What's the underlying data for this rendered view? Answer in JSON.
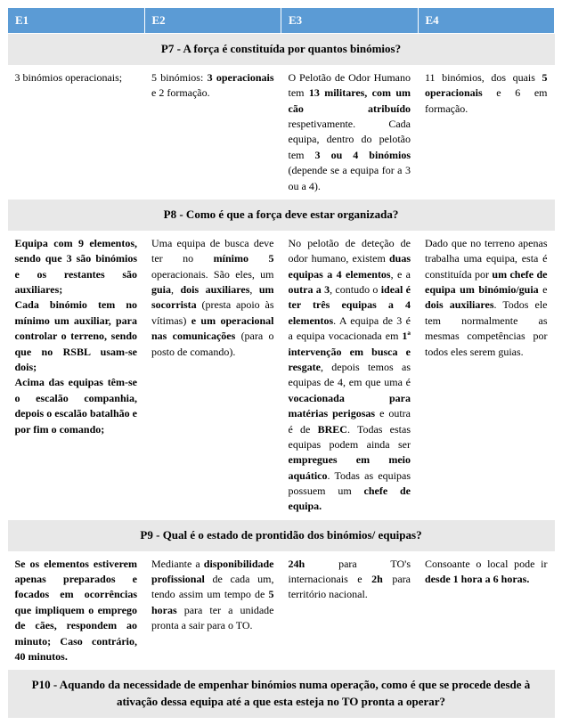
{
  "headers": {
    "e1": "E1",
    "e2": "E2",
    "e3": "E3",
    "e4": "E4"
  },
  "sections": {
    "p7": {
      "title": "P7 - A força é constituída por quantos binómios?",
      "e1": "3 binómios operacionais;",
      "e2_pre": "5 binómios: ",
      "e2_b1": "3 operacionais",
      "e2_mid": " e 2 formação.",
      "e3_pre": "O Pelotão de Odor Humano tem ",
      "e3_b1": "13 militares, com um cão atribuído",
      "e3_mid": " respetivamente. Cada equipa, dentro do pelotão tem ",
      "e3_b2": "3 ou 4 binómios",
      "e3_post": " (depende se a equipa for a 3 ou a 4).",
      "e4_pre": "11 binómios, dos quais ",
      "e4_b1": "5 operacionais",
      "e4_post": " e 6 em formação."
    },
    "p8": {
      "title": "P8 - Como é que a força deve estar organizada?",
      "e1_b1": "Equipa com 9 elementos, sendo que 3 são binómios e os restantes são auxiliares;",
      "e1_b2": "Cada binómio tem no mínimo um auxiliar, para controlar o terreno, sendo que no RSBL usam-se dois;",
      "e1_b3": "Acima das equipas têm-se o escalão companhia, depois o escalão batalhão e por fim o comando;",
      "e2_pre": "Uma equipa de busca deve ter no ",
      "e2_b1": "mínimo 5",
      "e2_mid1": " operacionais. São eles, um ",
      "e2_b2": "guia",
      "e2_mid2": ", ",
      "e2_b3": "dois auxiliares",
      "e2_mid3": ", ",
      "e2_b4": "um socorrista",
      "e2_mid4": " (presta apoio às vítimas) ",
      "e2_b5": "e um operacional nas comunicações",
      "e2_post": " (para o posto de comando).",
      "e3_pre": "No pelotão de deteção de odor humano, existem ",
      "e3_b1": "duas equipas a 4 elementos",
      "e3_mid1": ", e a ",
      "e3_b2": "outra a 3",
      "e3_mid2": ", contudo o ",
      "e3_b3": "ideal é ter três equipas a 4 elementos",
      "e3_mid3": ". A equipa de 3 é a equipa vocacionada em ",
      "e3_b4": "1ª intervenção em busca e resgate",
      "e3_mid4": ", depois temos as equipas de 4, em que uma é ",
      "e3_b5": "vocacionada para matérias perigosas",
      "e3_mid5": " e outra é de ",
      "e3_b6": "BREC",
      "e3_mid6": ". Todas estas equipas podem ainda ser ",
      "e3_b7": "empregues em meio aquático",
      "e3_mid7": ". Todas as equipas possuem um ",
      "e3_b8": "chefe de equipa.",
      "e4_pre": "Dado que no terreno apenas trabalha uma equipa, esta é constituída por ",
      "e4_b1": "um chefe de equipa um binómio/guia",
      "e4_mid1": " e ",
      "e4_b2": "dois auxiliares",
      "e4_post": ". Todos ele tem normalmente as mesmas competências por todos eles serem guias."
    },
    "p9": {
      "title": "P9 - Qual é o estado de prontidão dos binómios/ equipas?",
      "e1_b1": "Se os elementos estiverem apenas preparados e focados em ocorrências que impliquem o emprego de cães, respondem ao minuto; Caso contrário, 40 minutos.",
      "e2_pre": "Mediante a ",
      "e2_b1": "disponibilidade profissional",
      "e2_mid": " de cada um, tendo assim um tempo de ",
      "e2_b2": "5 horas",
      "e2_post": " para ter a unidade pronta a sair para o TO.",
      "e3_b1": "24h",
      "e3_mid1": " para TO's internacionais e ",
      "e3_b2": "2h",
      "e3_post": " para território nacional.",
      "e4_pre": "Consoante o local pode ir ",
      "e4_b1": "desde 1 hora a 6 horas."
    },
    "p10": {
      "title": "P10 - Aquando da necessidade de empenhar binómios numa operação, como é que se procede desde à ativação dessa equipa até a que esta esteja no TO pronta a operar?"
    }
  }
}
